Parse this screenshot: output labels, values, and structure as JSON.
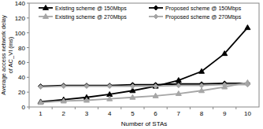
{
  "chart_data": {
    "type": "line",
    "x_label": "Number of STAs",
    "y_label": [
      "Average access network delay",
      "of AC_VI (ms)"
    ],
    "categories": [
      "1",
      "2",
      "3",
      "4",
      "5",
      "6",
      "7",
      "8",
      "9",
      "10"
    ],
    "series": [
      {
        "name": "Existing scheme @ 150Mbps",
        "color": "#000000",
        "marker": "triangle",
        "values": [
          7,
          10,
          13,
          17,
          22,
          28,
          36,
          48,
          72,
          107
        ]
      },
      {
        "name": "Proposed scheme @ 150Mbps",
        "color": "#000000",
        "marker": "diamond",
        "values": [
          28,
          29,
          29,
          29,
          30,
          30,
          31,
          31,
          32,
          32
        ]
      },
      {
        "name": "Existing scheme @ 270Mbps",
        "color": "#a6a6a6",
        "marker": "triangle",
        "values": [
          6,
          8,
          9,
          11,
          13,
          15,
          18,
          22,
          27,
          33
        ]
      },
      {
        "name": "Proposed scheme @ 270Mbps",
        "color": "#a6a6a6",
        "marker": "diamond",
        "values": [
          27,
          28,
          28,
          28,
          28,
          28,
          29,
          29,
          30,
          30
        ]
      }
    ],
    "ylim": [
      0,
      140
    ],
    "yticks": [
      0,
      20,
      40,
      60,
      80,
      100,
      120,
      140
    ],
    "grid": false,
    "legend": "top-left"
  }
}
